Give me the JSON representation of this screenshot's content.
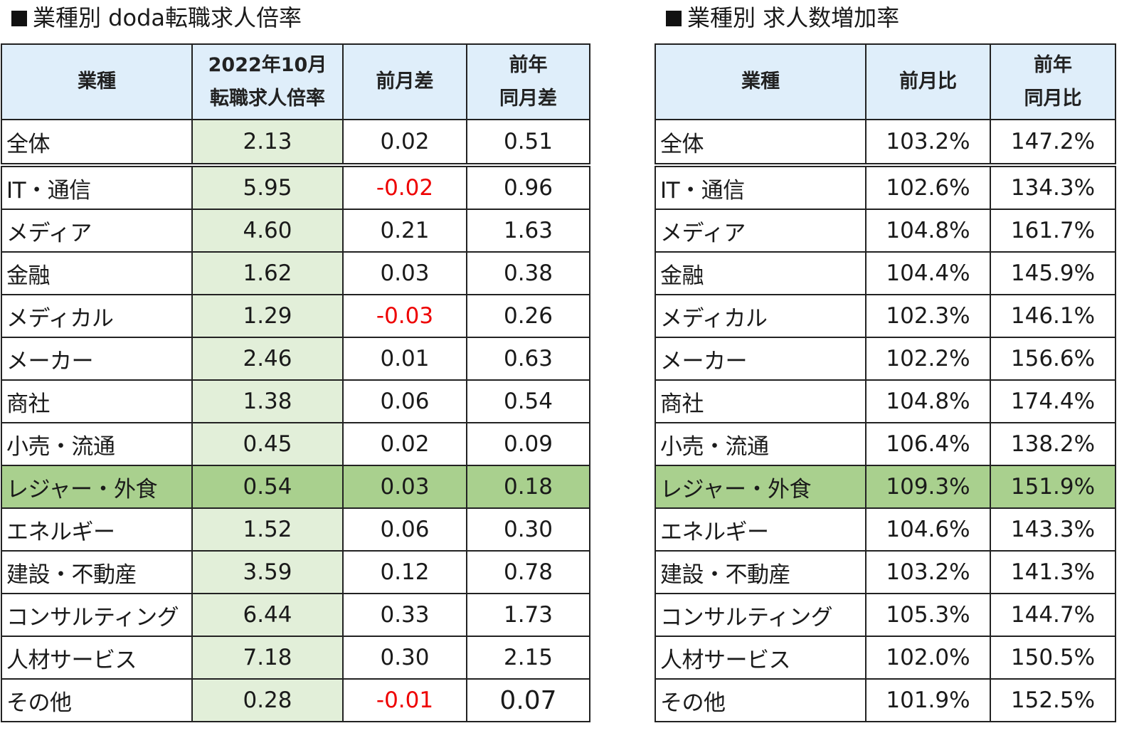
{
  "left": {
    "title": "業種別 doda転職求人倍率",
    "headers": {
      "industry": "業種",
      "ratio_line1": "2022年10月",
      "ratio_line2": "転職求人倍率",
      "mom": "前月差",
      "yoy_line1": "前年",
      "yoy_line2": "同月差"
    },
    "rows": [
      {
        "name": "全体",
        "ratio": "2.13",
        "mom": "0.02",
        "yoy": "0.51"
      },
      {
        "name": "IT・通信",
        "ratio": "5.95",
        "mom": "-0.02",
        "yoy": "0.96"
      },
      {
        "name": "メディア",
        "ratio": "4.60",
        "mom": "0.21",
        "yoy": "1.63"
      },
      {
        "name": "金融",
        "ratio": "1.62",
        "mom": "0.03",
        "yoy": "0.38"
      },
      {
        "name": "メディカル",
        "ratio": "1.29",
        "mom": "-0.03",
        "yoy": "0.26"
      },
      {
        "name": "メーカー",
        "ratio": "2.46",
        "mom": "0.01",
        "yoy": "0.63"
      },
      {
        "name": "商社",
        "ratio": "1.38",
        "mom": "0.06",
        "yoy": "0.54"
      },
      {
        "name": "小売・流通",
        "ratio": "0.45",
        "mom": "0.02",
        "yoy": "0.09"
      },
      {
        "name": "レジャー・外食",
        "ratio": "0.54",
        "mom": "0.03",
        "yoy": "0.18"
      },
      {
        "name": "エネルギー",
        "ratio": "1.52",
        "mom": "0.06",
        "yoy": "0.30"
      },
      {
        "name": "建設・不動産",
        "ratio": "3.59",
        "mom": "0.12",
        "yoy": "0.78"
      },
      {
        "name": "コンサルティング",
        "ratio": "6.44",
        "mom": "0.33",
        "yoy": "1.73"
      },
      {
        "name": "人材サービス",
        "ratio": "7.18",
        "mom": "0.30",
        "yoy": "2.15"
      },
      {
        "name": "その他",
        "ratio": "0.28",
        "mom": "-0.01",
        "yoy": "0.07"
      }
    ]
  },
  "right": {
    "title": "業種別 求人数増加率",
    "headers": {
      "industry": "業種",
      "mom": "前月比",
      "yoy_line1": "前年",
      "yoy_line2": "同月比"
    },
    "rows": [
      {
        "name": "全体",
        "mom": "103.2%",
        "yoy": "147.2%"
      },
      {
        "name": "IT・通信",
        "mom": "102.6%",
        "yoy": "134.3%"
      },
      {
        "name": "メディア",
        "mom": "104.8%",
        "yoy": "161.7%"
      },
      {
        "name": "金融",
        "mom": "104.4%",
        "yoy": "145.9%"
      },
      {
        "name": "メディカル",
        "mom": "102.3%",
        "yoy": "146.1%"
      },
      {
        "name": "メーカー",
        "mom": "102.2%",
        "yoy": "156.6%"
      },
      {
        "name": "商社",
        "mom": "104.8%",
        "yoy": "174.4%"
      },
      {
        "name": "小売・流通",
        "mom": "106.4%",
        "yoy": "138.2%"
      },
      {
        "name": "レジャー・外食",
        "mom": "109.3%",
        "yoy": "151.9%"
      },
      {
        "name": "エネルギー",
        "mom": "104.6%",
        "yoy": "143.3%"
      },
      {
        "name": "建設・不動産",
        "mom": "103.2%",
        "yoy": "141.3%"
      },
      {
        "name": "コンサルティング",
        "mom": "105.3%",
        "yoy": "144.7%"
      },
      {
        "name": "人材サービス",
        "mom": "102.0%",
        "yoy": "150.5%"
      },
      {
        "name": "その他",
        "mom": "101.9%",
        "yoy": "152.5%"
      }
    ]
  },
  "colors": {
    "header_bg": "#dfeefa",
    "ratio_column_bg": "#e2efd9",
    "highlight_row_bg": "#a9d08e",
    "negative_text": "#ee0000"
  },
  "highlight_row": "レジャー・外食"
}
